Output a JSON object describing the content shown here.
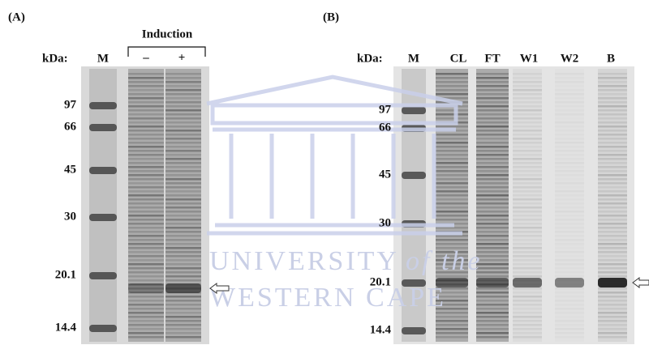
{
  "panels": [
    {
      "label": "(A)",
      "unit_label": "kDa:",
      "marker_lane": "M",
      "group_label": "Induction",
      "lanes": [
        "–",
        "+"
      ],
      "markers": [
        "97",
        "66",
        "45",
        "30",
        "20.1",
        "14.4"
      ]
    },
    {
      "label": "(B)",
      "unit_label": "kDa:",
      "marker_lane": "M",
      "lanes": [
        "CL",
        "FT",
        "W1",
        "W2",
        "B"
      ],
      "markers": [
        "97",
        "66",
        "45",
        "30",
        "20.1",
        "14.4"
      ]
    }
  ],
  "watermark": {
    "line1": "UNIVERSITY",
    "line1_italic": "of the",
    "line2": "WESTERN CAPE"
  }
}
